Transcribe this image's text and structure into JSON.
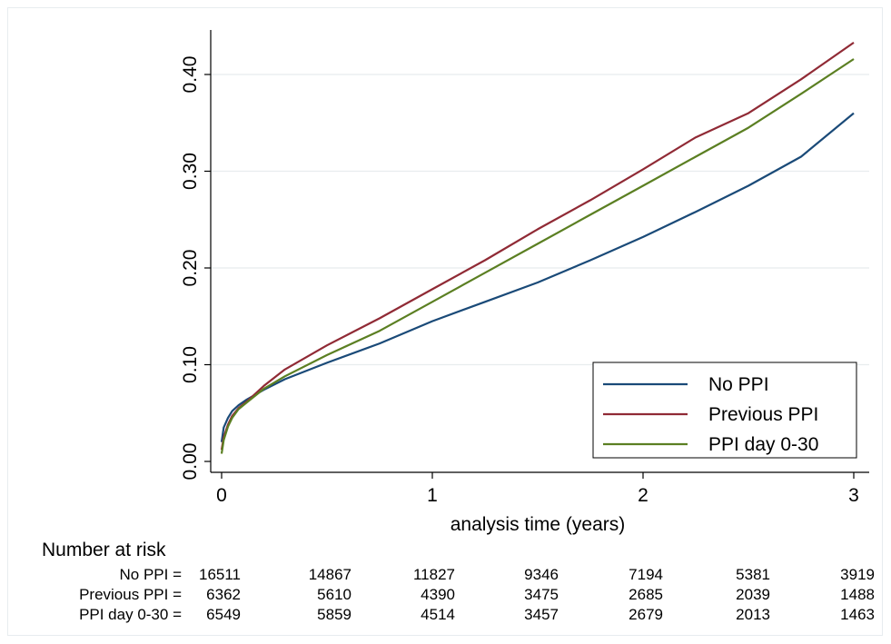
{
  "chart_data": {
    "type": "line",
    "title": "",
    "xlabel": "analysis time (years)",
    "ylabel": "",
    "xlim": [
      0,
      3
    ],
    "ylim": [
      0,
      0.45
    ],
    "x_ticks": [
      "0",
      "1",
      "2",
      "3"
    ],
    "y_ticks": [
      "0.00",
      "0.10",
      "0.20",
      "0.30",
      "0.40"
    ],
    "grid": "horizontal",
    "legend_position": "bottom-right",
    "series": [
      {
        "name": "No PPI",
        "color": "#1a4a78",
        "x": [
          0,
          0.01,
          0.03,
          0.05,
          0.08,
          0.12,
          0.2,
          0.3,
          0.5,
          0.75,
          1.0,
          1.25,
          1.5,
          1.75,
          2.0,
          2.25,
          2.5,
          2.75,
          3.0
        ],
        "y": [
          0.02,
          0.035,
          0.045,
          0.052,
          0.058,
          0.064,
          0.074,
          0.085,
          0.102,
          0.122,
          0.145,
          0.165,
          0.185,
          0.208,
          0.232,
          0.258,
          0.285,
          0.315,
          0.36
        ]
      },
      {
        "name": "Previous PPI",
        "color": "#902a35",
        "x": [
          0,
          0.01,
          0.03,
          0.05,
          0.08,
          0.12,
          0.2,
          0.3,
          0.5,
          0.75,
          1.0,
          1.25,
          1.5,
          1.75,
          2.0,
          2.25,
          2.5,
          2.75,
          3.0
        ],
        "y": [
          0.012,
          0.025,
          0.038,
          0.047,
          0.055,
          0.062,
          0.078,
          0.095,
          0.12,
          0.148,
          0.178,
          0.208,
          0.24,
          0.27,
          0.302,
          0.335,
          0.36,
          0.395,
          0.433
        ]
      },
      {
        "name": "PPI day 0-30",
        "color": "#5b7f22",
        "x": [
          0,
          0.01,
          0.03,
          0.05,
          0.08,
          0.12,
          0.2,
          0.3,
          0.5,
          0.75,
          1.0,
          1.25,
          1.5,
          1.75,
          2.0,
          2.25,
          2.5,
          2.75,
          3.0
        ],
        "y": [
          0.008,
          0.022,
          0.036,
          0.045,
          0.054,
          0.061,
          0.075,
          0.088,
          0.11,
          0.135,
          0.165,
          0.195,
          0.225,
          0.255,
          0.285,
          0.315,
          0.345,
          0.38,
          0.416
        ]
      }
    ]
  },
  "risk_table": {
    "title": "Number at risk",
    "rows": [
      {
        "label": "No PPI =",
        "values": [
          "16511",
          "14867",
          "11827",
          "9346",
          "7194",
          "5381",
          "3919"
        ]
      },
      {
        "label": "Previous PPI =",
        "values": [
          "6362",
          "5610",
          "4390",
          "3475",
          "2685",
          "2039",
          "1488"
        ]
      },
      {
        "label": "PPI day 0-30 =",
        "values": [
          "6549",
          "5859",
          "4514",
          "3457",
          "2679",
          "2013",
          "1463"
        ]
      }
    ]
  }
}
